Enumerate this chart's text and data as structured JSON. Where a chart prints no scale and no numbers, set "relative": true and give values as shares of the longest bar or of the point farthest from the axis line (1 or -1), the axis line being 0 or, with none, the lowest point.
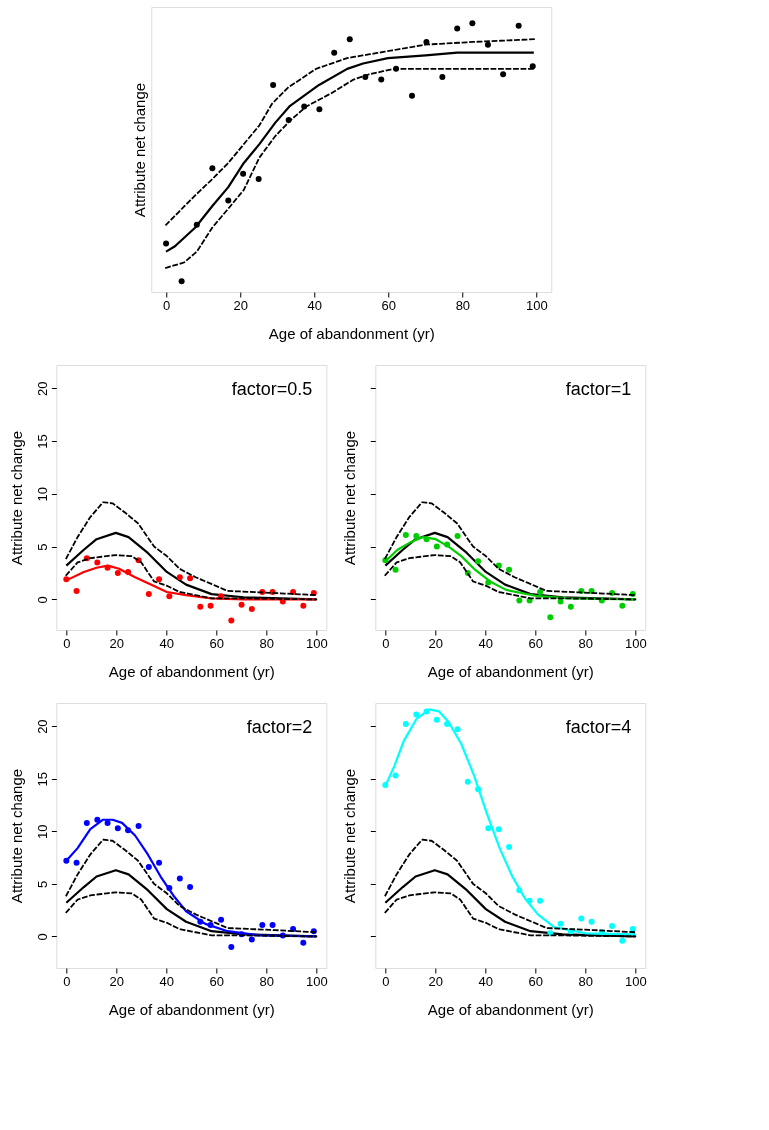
{
  "chart_data": [
    {
      "type": "scatter",
      "relative": true,
      "xlabel": "Age of abandonment (yr)",
      "ylabel": "Attribute net change",
      "xlim": [
        -4,
        104
      ],
      "xticks": [
        0,
        20,
        40,
        60,
        80,
        100
      ],
      "grid": false,
      "series": [
        {
          "type": "line",
          "color": "#000000",
          "line_style": "solid",
          "x": [
            0,
            2.4,
            7.9,
            12.5,
            16.8,
            21.0,
            25.2,
            29.5,
            33.3,
            37.3,
            41.3,
            48.9,
            53.2,
            59.9,
            70.1,
            78.6,
            87.0,
            99.3
          ],
          "values": [
            0.15,
            0.17,
            0.24,
            0.32,
            0.39,
            0.48,
            0.55,
            0.63,
            0.69,
            0.73,
            0.77,
            0.83,
            0.85,
            0.87,
            0.88,
            0.89,
            0.89,
            0.89
          ]
        },
        {
          "type": "line",
          "color": "#000000",
          "line_style": "dashed",
          "x": [
            0,
            7.9,
            12.5,
            16.8,
            21.0,
            25.2,
            28.6,
            32.9,
            40.5,
            48.9,
            57.4,
            70.1,
            82.8,
            99.3
          ],
          "values": [
            0.25,
            0.36,
            0.42,
            0.48,
            0.55,
            0.62,
            0.7,
            0.76,
            0.83,
            0.87,
            0.89,
            0.92,
            0.93,
            0.94
          ]
        },
        {
          "type": "line",
          "color": "#000000",
          "line_style": "dashed",
          "x": [
            0,
            4.9,
            8.3,
            12.5,
            16.8,
            21.0,
            25.2,
            29.5,
            33.7,
            37.9,
            44.7,
            50.6,
            54.9,
            61.6,
            70.1,
            99.3
          ],
          "values": [
            0.09,
            0.11,
            0.15,
            0.24,
            0.31,
            0.38,
            0.5,
            0.58,
            0.64,
            0.69,
            0.74,
            0.79,
            0.81,
            0.83,
            0.83,
            0.83
          ]
        },
        {
          "color": "#000000",
          "marker": "circle",
          "x": [
            0,
            4.2,
            8.3,
            12.5,
            16.8,
            20.8,
            25.0,
            28.9,
            33.1,
            37.3,
            41.4,
            45.4,
            49.6,
            53.8,
            58.1,
            62.1,
            66.4,
            70.3,
            74.6,
            78.6,
            82.7,
            86.9,
            91.0,
            95.2,
            99.0
          ],
          "values": [
            0.18,
            0.04,
            0.25,
            0.46,
            0.34,
            0.44,
            0.42,
            0.77,
            0.64,
            0.69,
            0.68,
            0.89,
            0.94,
            0.8,
            0.79,
            0.83,
            0.73,
            0.93,
            0.8,
            0.98,
            1,
            0.92,
            0.81,
            0.99,
            0.84
          ]
        }
      ]
    },
    {
      "type": "scatter",
      "xlabel": "Age of abandonment (yr)",
      "ylabel": "Attribute net change",
      "xlim": [
        -4,
        104
      ],
      "xticks": [
        0,
        20,
        40,
        60,
        80,
        100
      ],
      "ylim": [
        -2.9,
        22.2
      ],
      "yticks": [
        0,
        5,
        10,
        15,
        20
      ],
      "grid": false,
      "annotations": [
        "factor=0.5"
      ],
      "series": [
        {
          "type": "line",
          "color": "#000000",
          "line_style": "solid",
          "x": [
            0,
            7.0,
            12.1,
            19.8,
            24.9,
            32.6,
            40.2,
            47.9,
            58.1,
            70.9,
            100
          ],
          "values": [
            3.2,
            4.7,
            5.7,
            6.3,
            5.9,
            4.4,
            2.6,
            1.4,
            0.5,
            0.2,
            0
          ]
        },
        {
          "type": "line",
          "color": "#000000",
          "line_style": "dashed",
          "x": [
            0,
            4.5,
            9.6,
            14.7,
            18.5,
            23.6,
            28.7,
            35.1,
            40.2,
            45.3,
            51.7,
            64.5,
            83.7,
            100
          ],
          "values": [
            3.9,
            5.9,
            7.8,
            9.2,
            9.1,
            8.2,
            7.2,
            5.0,
            4.1,
            2.9,
            2.1,
            0.8,
            0.6,
            0.4
          ]
        },
        {
          "type": "line",
          "color": "#000000",
          "line_style": "dashed",
          "x": [
            0,
            4.5,
            9.6,
            16,
            19.8,
            26.2,
            30,
            35.1,
            40.2,
            45.3,
            51.7,
            58.1,
            70.9,
            100
          ],
          "values": [
            2.3,
            3.5,
            3.9,
            4.1,
            4.2,
            4.1,
            3.5,
            1.7,
            1.3,
            0.7,
            0.4,
            0.1,
            0.1,
            0
          ]
        },
        {
          "type": "line",
          "color": "#ff0000",
          "line_style": "solid",
          "x": [
            0,
            7.0,
            12.1,
            16.6,
            21.1,
            27.5,
            33.8,
            40.2,
            47.9,
            58.1,
            70.9,
            100
          ],
          "values": [
            1.8,
            2.6,
            3.0,
            3.2,
            2.9,
            2.1,
            1.4,
            0.7,
            0.4,
            0.1,
            0,
            0
          ]
        },
        {
          "color": "#ff0000",
          "marker": "circle",
          "x": [
            0,
            4.1,
            8.2,
            12.4,
            16.5,
            20.6,
            24.7,
            28.9,
            33,
            37.1,
            41.2,
            45.4,
            49.5,
            53.6,
            57.7,
            61.9,
            66,
            70.1,
            74.2,
            78.4,
            82.5,
            86.6,
            90.7,
            94.8,
            99
          ],
          "values": [
            1.9,
            0.8,
            3.9,
            3.5,
            3.0,
            2.5,
            2.6,
            3.7,
            0.5,
            1.9,
            0.3,
            2.1,
            2.0,
            -0.7,
            -0.6,
            0.3,
            -2.0,
            -0.5,
            -0.9,
            0.7,
            0.7,
            -0.2,
            0.7,
            -0.6,
            0.6
          ]
        }
      ]
    },
    {
      "type": "scatter",
      "xlabel": "Age of abandonment (yr)",
      "ylabel": "Attribute net change",
      "xlim": [
        -4,
        104
      ],
      "xticks": [
        0,
        20,
        40,
        60,
        80,
        100
      ],
      "ylim": [
        -2.9,
        22.2
      ],
      "yticks": [
        {
          "value": 0,
          "label": null
        },
        {
          "value": 5,
          "label": null
        },
        {
          "value": 10,
          "label": null
        },
        {
          "value": 15,
          "label": null
        },
        {
          "value": 20,
          "label": null
        }
      ],
      "tick_labels": "x",
      "grid": false,
      "annotations": [
        "factor=1"
      ],
      "series": [
        {
          "type": "line",
          "color": "#000000",
          "line_style": "solid",
          "x": [
            0,
            7.0,
            12.1,
            19.8,
            24.9,
            32.6,
            40.2,
            47.9,
            58.1,
            70.9,
            100
          ],
          "values": [
            3.2,
            4.7,
            5.7,
            6.3,
            5.9,
            4.4,
            2.6,
            1.4,
            0.5,
            0.2,
            0
          ]
        },
        {
          "type": "line",
          "color": "#000000",
          "line_style": "dashed",
          "x": [
            0,
            4.5,
            9.6,
            14.7,
            18.5,
            23.6,
            28.7,
            35.1,
            40.2,
            45.3,
            51.7,
            64.5,
            83.7,
            100
          ],
          "values": [
            3.9,
            5.9,
            7.8,
            9.2,
            9.1,
            8.2,
            7.2,
            5.0,
            4.1,
            2.9,
            2.1,
            0.8,
            0.6,
            0.4
          ]
        },
        {
          "type": "line",
          "color": "#000000",
          "line_style": "dashed",
          "x": [
            0,
            4.5,
            9.6,
            16,
            19.8,
            26.2,
            30,
            35.1,
            40.2,
            45.3,
            51.7,
            58.1,
            70.9,
            100
          ],
          "values": [
            2.3,
            3.5,
            3.9,
            4.1,
            4.2,
            4.1,
            3.5,
            1.7,
            1.3,
            0.7,
            0.4,
            0.1,
            0.1,
            0
          ]
        },
        {
          "type": "line",
          "color": "#00cd00",
          "line_style": "solid",
          "x": [
            0,
            4.9,
            10.0,
            15.1,
            20.2,
            25.3,
            30.4,
            35.5,
            41.9,
            48.3,
            61.0,
            73.8,
            100
          ],
          "values": [
            3.6,
            4.7,
            5.4,
            5.9,
            5.7,
            5.0,
            4.1,
            2.9,
            1.7,
            0.9,
            0.3,
            0.1,
            0
          ]
        },
        {
          "color": "#00cd00",
          "marker": "circle",
          "x": [
            0,
            4.1,
            8.2,
            12.4,
            16.5,
            20.6,
            24.7,
            28.9,
            33,
            37.1,
            41.2,
            45.4,
            49.5,
            53.6,
            57.7,
            61.9,
            66,
            70.1,
            74.2,
            78.4,
            82.5,
            86.6,
            90.7,
            94.8,
            99
          ],
          "values": [
            3.7,
            2.8,
            6.1,
            6.0,
            5.7,
            5.0,
            5.2,
            6.0,
            2.5,
            3.6,
            1.6,
            3.2,
            2.8,
            -0.1,
            -0.1,
            0.7,
            -1.7,
            -0.2,
            -0.7,
            0.8,
            0.8,
            -0.1,
            0.6,
            -0.6,
            0.5
          ]
        }
      ]
    },
    {
      "type": "scatter",
      "xlabel": "Age of abandonment (yr)",
      "ylabel": "Attribute net change",
      "xlim": [
        -4,
        104
      ],
      "xticks": [
        0,
        20,
        40,
        60,
        80,
        100
      ],
      "ylim": [
        -3.0,
        22.2
      ],
      "yticks": [
        0,
        5,
        10,
        15,
        20
      ],
      "grid": false,
      "annotations": [
        "factor=2"
      ],
      "series": [
        {
          "type": "line",
          "color": "#000000",
          "line_style": "solid",
          "x": [
            0,
            7.0,
            12.1,
            19.8,
            24.9,
            32.6,
            40.2,
            47.9,
            58.1,
            70.9,
            100
          ],
          "values": [
            3.2,
            4.7,
            5.7,
            6.3,
            5.9,
            4.4,
            2.6,
            1.4,
            0.5,
            0.2,
            0
          ]
        },
        {
          "type": "line",
          "color": "#000000",
          "line_style": "dashed",
          "x": [
            0,
            4.5,
            9.6,
            14.7,
            18.5,
            23.6,
            28.7,
            35.1,
            40.2,
            45.3,
            51.7,
            64.5,
            83.7,
            100
          ],
          "values": [
            3.9,
            5.9,
            7.8,
            9.2,
            9.1,
            8.2,
            7.2,
            5.0,
            4.1,
            2.9,
            2.1,
            0.8,
            0.6,
            0.4
          ]
        },
        {
          "type": "line",
          "color": "#000000",
          "line_style": "dashed",
          "x": [
            0,
            4.5,
            9.6,
            16,
            19.8,
            26.2,
            30,
            35.1,
            40.2,
            45.3,
            51.7,
            58.1,
            70.9,
            100
          ],
          "values": [
            2.3,
            3.5,
            3.9,
            4.1,
            4.2,
            4.1,
            3.5,
            1.7,
            1.3,
            0.7,
            0.4,
            0.1,
            0.1,
            0
          ]
        },
        {
          "type": "line",
          "color": "#0000ff",
          "line_style": "solid",
          "x": [
            0,
            4.5,
            9.6,
            14.7,
            18.5,
            22.3,
            27.5,
            32.6,
            37.7,
            42.8,
            47.9,
            55.6,
            64.5,
            77.3,
            100
          ],
          "values": [
            7.2,
            8.4,
            10.2,
            11.1,
            11.1,
            10.8,
            9.6,
            7.8,
            5.7,
            3.9,
            2.4,
            1.2,
            0.5,
            0.1,
            0
          ]
        },
        {
          "color": "#0000ff",
          "marker": "circle",
          "x": [
            0,
            4.1,
            8.2,
            12.4,
            16.5,
            20.6,
            24.7,
            28.9,
            33,
            37.1,
            41.2,
            45.4,
            49.5,
            53.6,
            57.7,
            61.9,
            66,
            70.1,
            74.2,
            78.4,
            82.5,
            86.6,
            90.7,
            94.8,
            99
          ],
          "values": [
            7.2,
            7.0,
            10.8,
            11.1,
            10.8,
            10.3,
            10.1,
            10.5,
            6.6,
            7.0,
            4.6,
            5.5,
            4.7,
            1.4,
            1.1,
            1.6,
            -1.0,
            0.2,
            -0.3,
            1.1,
            1.1,
            0.1,
            0.7,
            -0.6,
            0.5
          ]
        }
      ]
    },
    {
      "type": "scatter",
      "xlabel": "Age of abandonment (yr)",
      "ylabel": "Attribute net change",
      "xlim": [
        -4,
        104
      ],
      "xticks": [
        0,
        20,
        40,
        60,
        80,
        100
      ],
      "ylim": [
        -3.0,
        22.2
      ],
      "yticks": [
        {
          "value": 0,
          "label": null
        },
        {
          "value": 5,
          "label": null
        },
        {
          "value": 10,
          "label": null
        },
        {
          "value": 15,
          "label": null
        },
        {
          "value": 20,
          "label": null
        }
      ],
      "tick_labels": "x",
      "grid": false,
      "annotations": [
        "factor=4"
      ],
      "series": [
        {
          "type": "line",
          "color": "#000000",
          "line_style": "solid",
          "x": [
            0,
            7.0,
            12.1,
            19.8,
            24.9,
            32.6,
            40.2,
            47.9,
            58.1,
            70.9,
            100
          ],
          "values": [
            3.2,
            4.7,
            5.7,
            6.3,
            5.9,
            4.4,
            2.6,
            1.4,
            0.5,
            0.2,
            0
          ]
        },
        {
          "type": "line",
          "color": "#000000",
          "line_style": "dashed",
          "x": [
            0,
            4.5,
            9.6,
            14.7,
            18.5,
            23.6,
            28.7,
            35.1,
            40.2,
            45.3,
            51.7,
            64.5,
            83.7,
            100
          ],
          "values": [
            3.9,
            5.9,
            7.8,
            9.2,
            9.1,
            8.2,
            7.2,
            5.0,
            4.1,
            2.9,
            2.1,
            0.8,
            0.6,
            0.4
          ]
        },
        {
          "type": "line",
          "color": "#000000",
          "line_style": "dashed",
          "x": [
            0,
            4.5,
            9.6,
            16,
            19.8,
            26.2,
            30,
            35.1,
            40.2,
            45.3,
            51.7,
            58.1,
            70.9,
            100
          ],
          "values": [
            2.3,
            3.5,
            3.9,
            4.1,
            4.2,
            4.1,
            3.5,
            1.7,
            1.3,
            0.7,
            0.4,
            0.1,
            0.1,
            0
          ]
        },
        {
          "type": "line",
          "color": "#00ffff",
          "line_style": "solid",
          "x": [
            0,
            3.6,
            7.4,
            12.5,
            17.6,
            21.5,
            25.3,
            30.4,
            35.5,
            40.6,
            45.7,
            50.8,
            55.9,
            61.0,
            67.4,
            80.2,
            100
          ],
          "values": [
            14.3,
            16.2,
            18.6,
            20.7,
            21.6,
            21.4,
            20.4,
            18.3,
            15.3,
            11.7,
            8.4,
            5.7,
            3.6,
            2.1,
            0.9,
            0.3,
            0.2
          ]
        },
        {
          "color": "#00ffff",
          "marker": "circle",
          "x": [
            0,
            4.1,
            8.2,
            12.4,
            16.5,
            20.6,
            24.7,
            28.9,
            33,
            37.1,
            41.2,
            45.4,
            49.5,
            53.6,
            57.7,
            61.9,
            66,
            70.1,
            74.2,
            78.4,
            82.5,
            86.6,
            90.7,
            94.8,
            99
          ],
          "values": [
            14.4,
            15.3,
            20.2,
            21.1,
            21.4,
            20.6,
            20.2,
            19.7,
            14.7,
            14.0,
            10.3,
            10.2,
            8.5,
            4.4,
            3.4,
            3.4,
            0.3,
            1.2,
            0.5,
            1.7,
            1.4,
            0.4,
            1.0,
            -0.4,
            0.7
          ]
        }
      ]
    }
  ]
}
